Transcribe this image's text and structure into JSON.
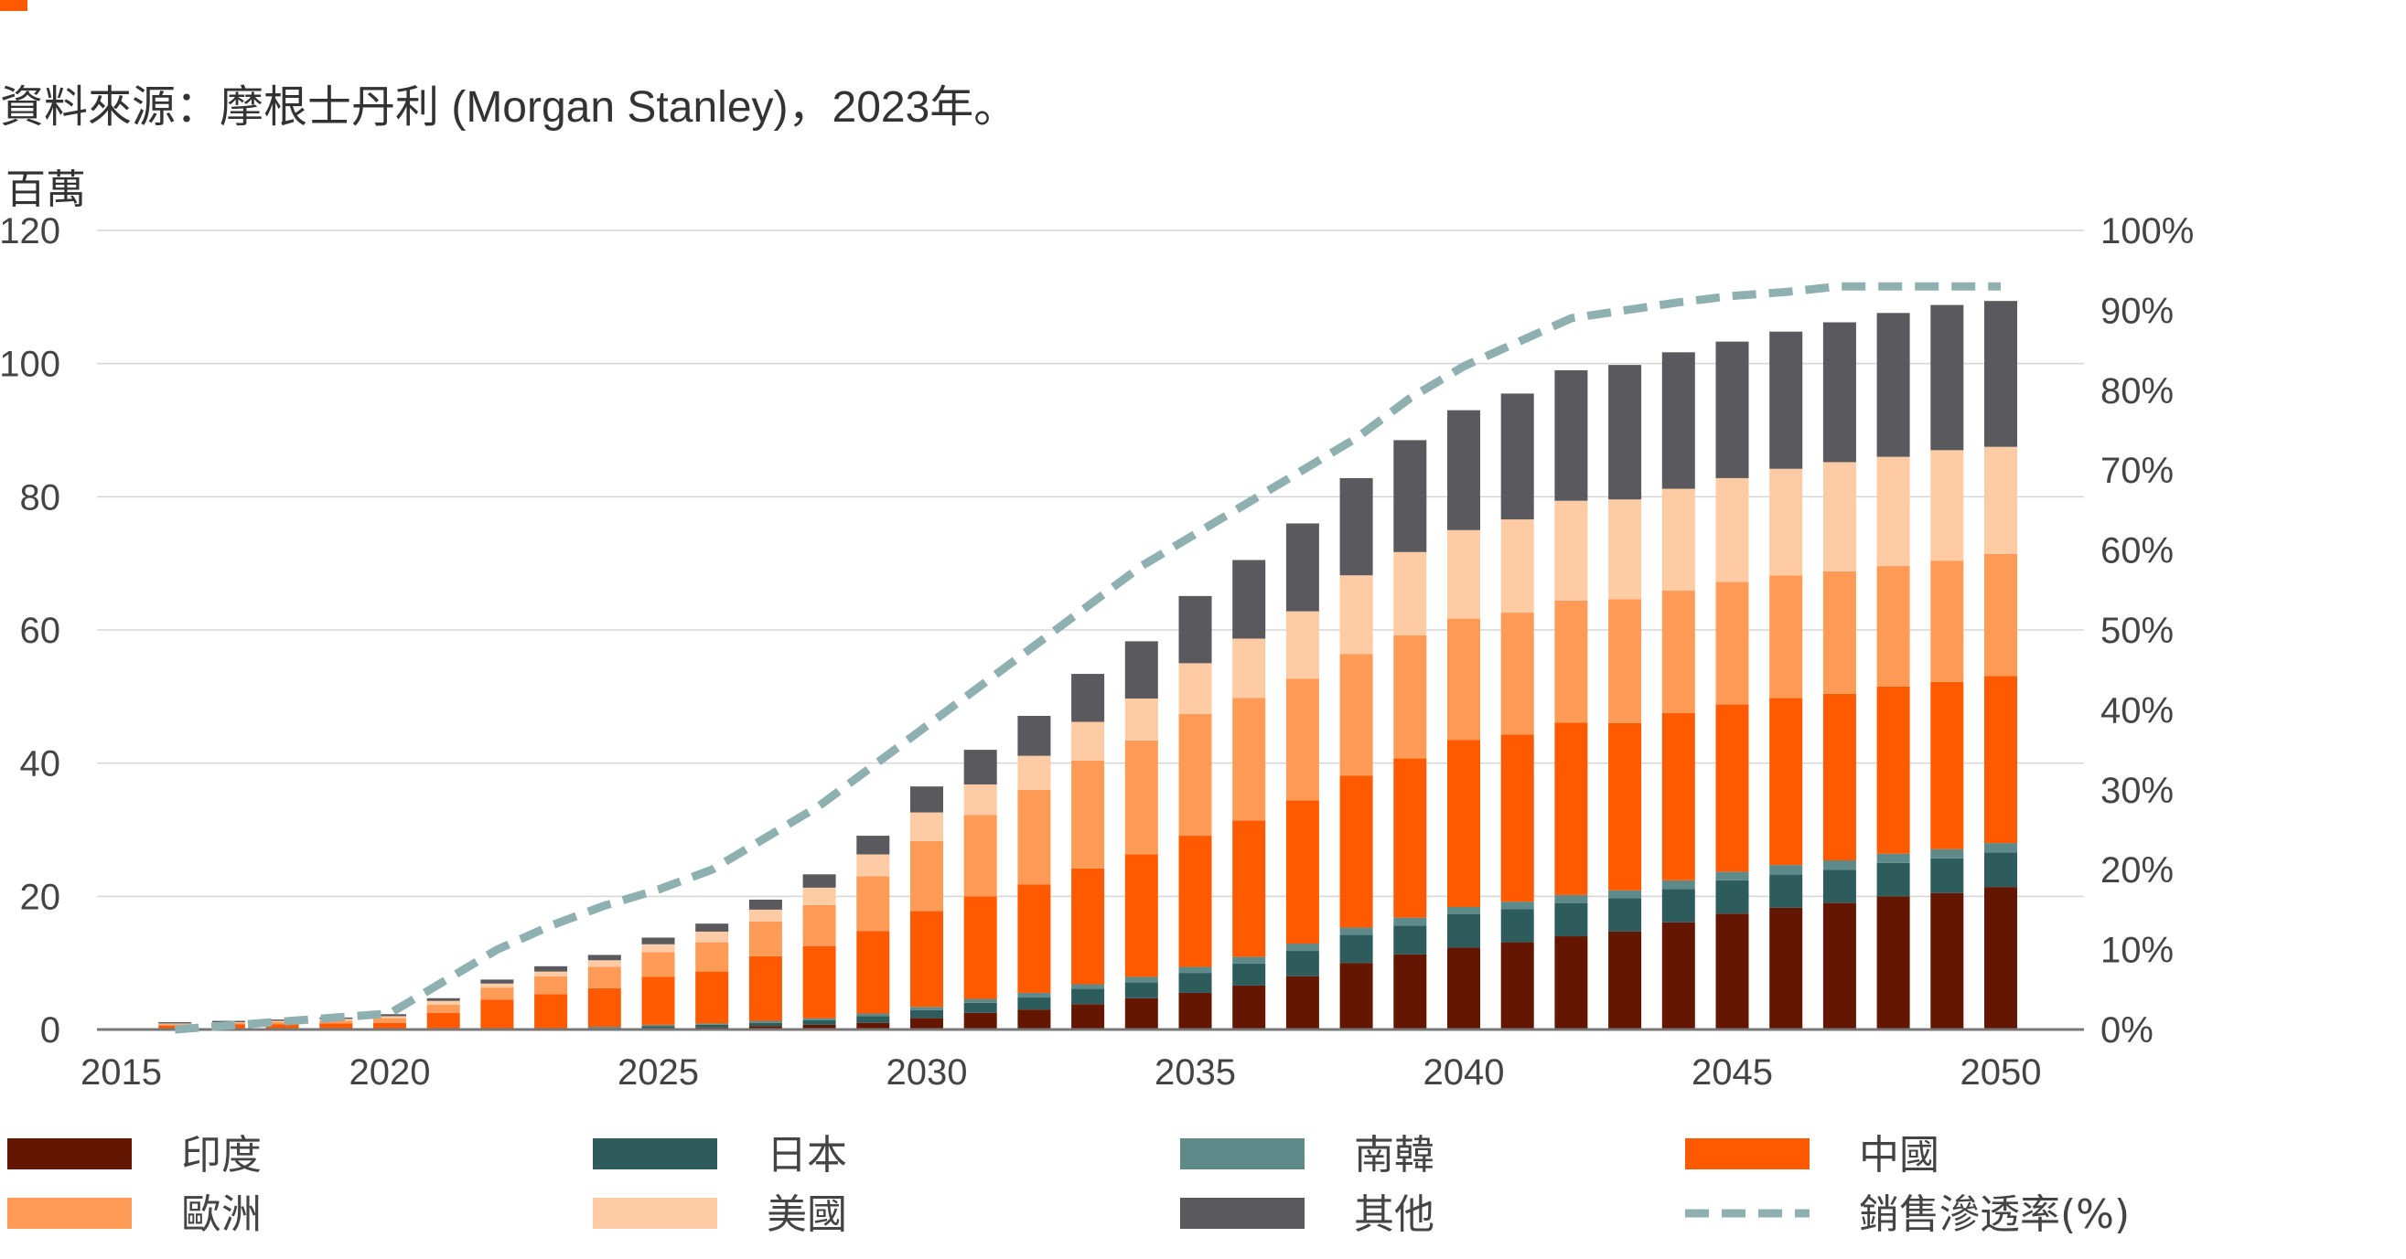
{
  "header": {
    "accent_color": "#FF5A00"
  },
  "source_note": "資料來源：摩根士丹利 (Morgan Stanley)，2023年。",
  "chart_data": {
    "type": "bar",
    "stacked": true,
    "combo": "bar+line",
    "title": "",
    "ylabel": "百萬",
    "ylim": [
      0,
      120
    ],
    "yticks": [
      "0",
      "20",
      "40",
      "60",
      "80",
      "100",
      "120"
    ],
    "y2lim": [
      0,
      100
    ],
    "y2ticks": [
      "0%",
      "10%",
      "20%",
      "30%",
      "40%",
      "50%",
      "60%",
      "70%",
      "80%",
      "90%",
      "100%"
    ],
    "xticks": [
      "2015",
      "2020",
      "2025",
      "2030",
      "2035",
      "2040",
      "2045",
      "2050"
    ],
    "grid": true,
    "legend_position": "bottom",
    "categories": [
      2016,
      2017,
      2018,
      2019,
      2020,
      2021,
      2022,
      2023,
      2024,
      2025,
      2026,
      2027,
      2028,
      2029,
      2030,
      2031,
      2032,
      2033,
      2034,
      2035,
      2036,
      2037,
      2038,
      2039,
      2040,
      2041,
      2042,
      2043,
      2044,
      2045,
      2046,
      2047,
      2048,
      2049,
      2050
    ],
    "series": [
      {
        "name": "印度",
        "color": "#641600",
        "values": [
          0,
          0,
          0,
          0,
          0,
          0,
          0,
          0,
          0,
          0.2,
          0.3,
          0.5,
          0.7,
          1,
          1.7,
          2.5,
          3,
          3.8,
          4.7,
          5.5,
          6.6,
          8,
          10,
          11.3,
          12.3,
          13.1,
          14,
          14.7,
          16.1,
          17.4,
          18.3,
          19,
          20,
          20.5,
          21.4
        ]
      },
      {
        "name": "日本",
        "color": "#2E5C5C",
        "values": [
          0,
          0,
          0,
          0,
          0,
          0,
          0,
          0,
          0.2,
          0.3,
          0.4,
          0.5,
          0.7,
          1,
          1.2,
          1.5,
          1.8,
          2.3,
          2.4,
          3,
          3.3,
          3.8,
          4.2,
          4.3,
          5,
          5,
          5,
          5,
          5,
          5,
          5,
          5,
          5,
          5.2,
          5.2
        ]
      },
      {
        "name": "南韓",
        "color": "#5E8A8A",
        "values": [
          0,
          0,
          0,
          0,
          0,
          0,
          0,
          0,
          0.2,
          0.2,
          0.2,
          0.3,
          0.3,
          0.4,
          0.5,
          0.6,
          0.7,
          0.7,
          0.8,
          0.9,
          1,
          1.1,
          1.1,
          1.2,
          1.1,
          1.1,
          1.2,
          1.2,
          1.3,
          1.3,
          1.4,
          1.4,
          1.4,
          1.4,
          1.4
        ]
      },
      {
        "name": "中國",
        "color": "#FF5A00",
        "values": [
          0.6,
          0.8,
          0.8,
          0.9,
          1,
          2.5,
          4.5,
          5.3,
          5.8,
          7.2,
          7.8,
          9.7,
          10.8,
          12.4,
          14.4,
          15.4,
          16.3,
          17.4,
          18.4,
          19.7,
          20.5,
          21.5,
          22.8,
          23.9,
          25.1,
          25.1,
          25.9,
          25.1,
          25.1,
          25.1,
          25.1,
          25,
          25.1,
          25.1,
          25.1
        ]
      },
      {
        "name": "歐洲",
        "color": "#FF9A57",
        "values": [
          0.2,
          0.2,
          0.3,
          0.4,
          0.7,
          1.2,
          1.8,
          2.7,
          3.2,
          3.7,
          4.4,
          5.2,
          6.2,
          8.2,
          10.5,
          12.2,
          14.2,
          16.2,
          17.1,
          18.3,
          18.4,
          18.3,
          18.3,
          18.5,
          18.2,
          18.3,
          18.3,
          18.6,
          18.4,
          18.4,
          18.4,
          18.4,
          18.1,
          18.2,
          18.3
        ]
      },
      {
        "name": "美國",
        "color": "#FFCBA4",
        "values": [
          0.1,
          0.1,
          0.2,
          0.3,
          0.3,
          0.6,
          0.6,
          0.7,
          1,
          1.2,
          1.6,
          1.8,
          2.6,
          3.3,
          4.3,
          4.6,
          5.1,
          5.8,
          6.3,
          7.6,
          8.9,
          10.1,
          11.8,
          12.5,
          13.3,
          14,
          15,
          15,
          15.3,
          15.6,
          16,
          16.4,
          16.4,
          16.6,
          16.1
        ]
      },
      {
        "name": "其他",
        "color": "#5A5A5E",
        "values": [
          0.2,
          0.2,
          0.2,
          0.2,
          0.3,
          0.4,
          0.6,
          0.8,
          0.8,
          1,
          1.2,
          1.5,
          2,
          2.8,
          3.9,
          5.2,
          6,
          7.2,
          8.6,
          10.1,
          11.8,
          13.2,
          14.6,
          16.8,
          18,
          18.9,
          19.6,
          20.2,
          20.5,
          20.5,
          20.6,
          21,
          21.6,
          21.8,
          21.9
        ]
      }
    ],
    "line_series": {
      "name": "銷售滲透率(%)",
      "color": "#8FB0B0",
      "axis": "right",
      "x": [
        2016,
        2017,
        2018,
        2019,
        2020,
        2021,
        2022,
        2023,
        2024,
        2025,
        2026,
        2027,
        2028,
        2029,
        2030,
        2031,
        2032,
        2033,
        2034,
        2035,
        2036,
        2037,
        2038,
        2039,
        2040,
        2041,
        2042,
        2043,
        2044,
        2045,
        2046,
        2047,
        2048,
        2049,
        2050
      ],
      "values": [
        0,
        0.5,
        1,
        1.5,
        2,
        6,
        10,
        13,
        15.5,
        17.5,
        20,
        24,
        28,
        33,
        38,
        43,
        48,
        53,
        58,
        62,
        66,
        70,
        74,
        79,
        83,
        86,
        89,
        90,
        91,
        91.8,
        92.3,
        93,
        93,
        93,
        93
      ]
    }
  }
}
